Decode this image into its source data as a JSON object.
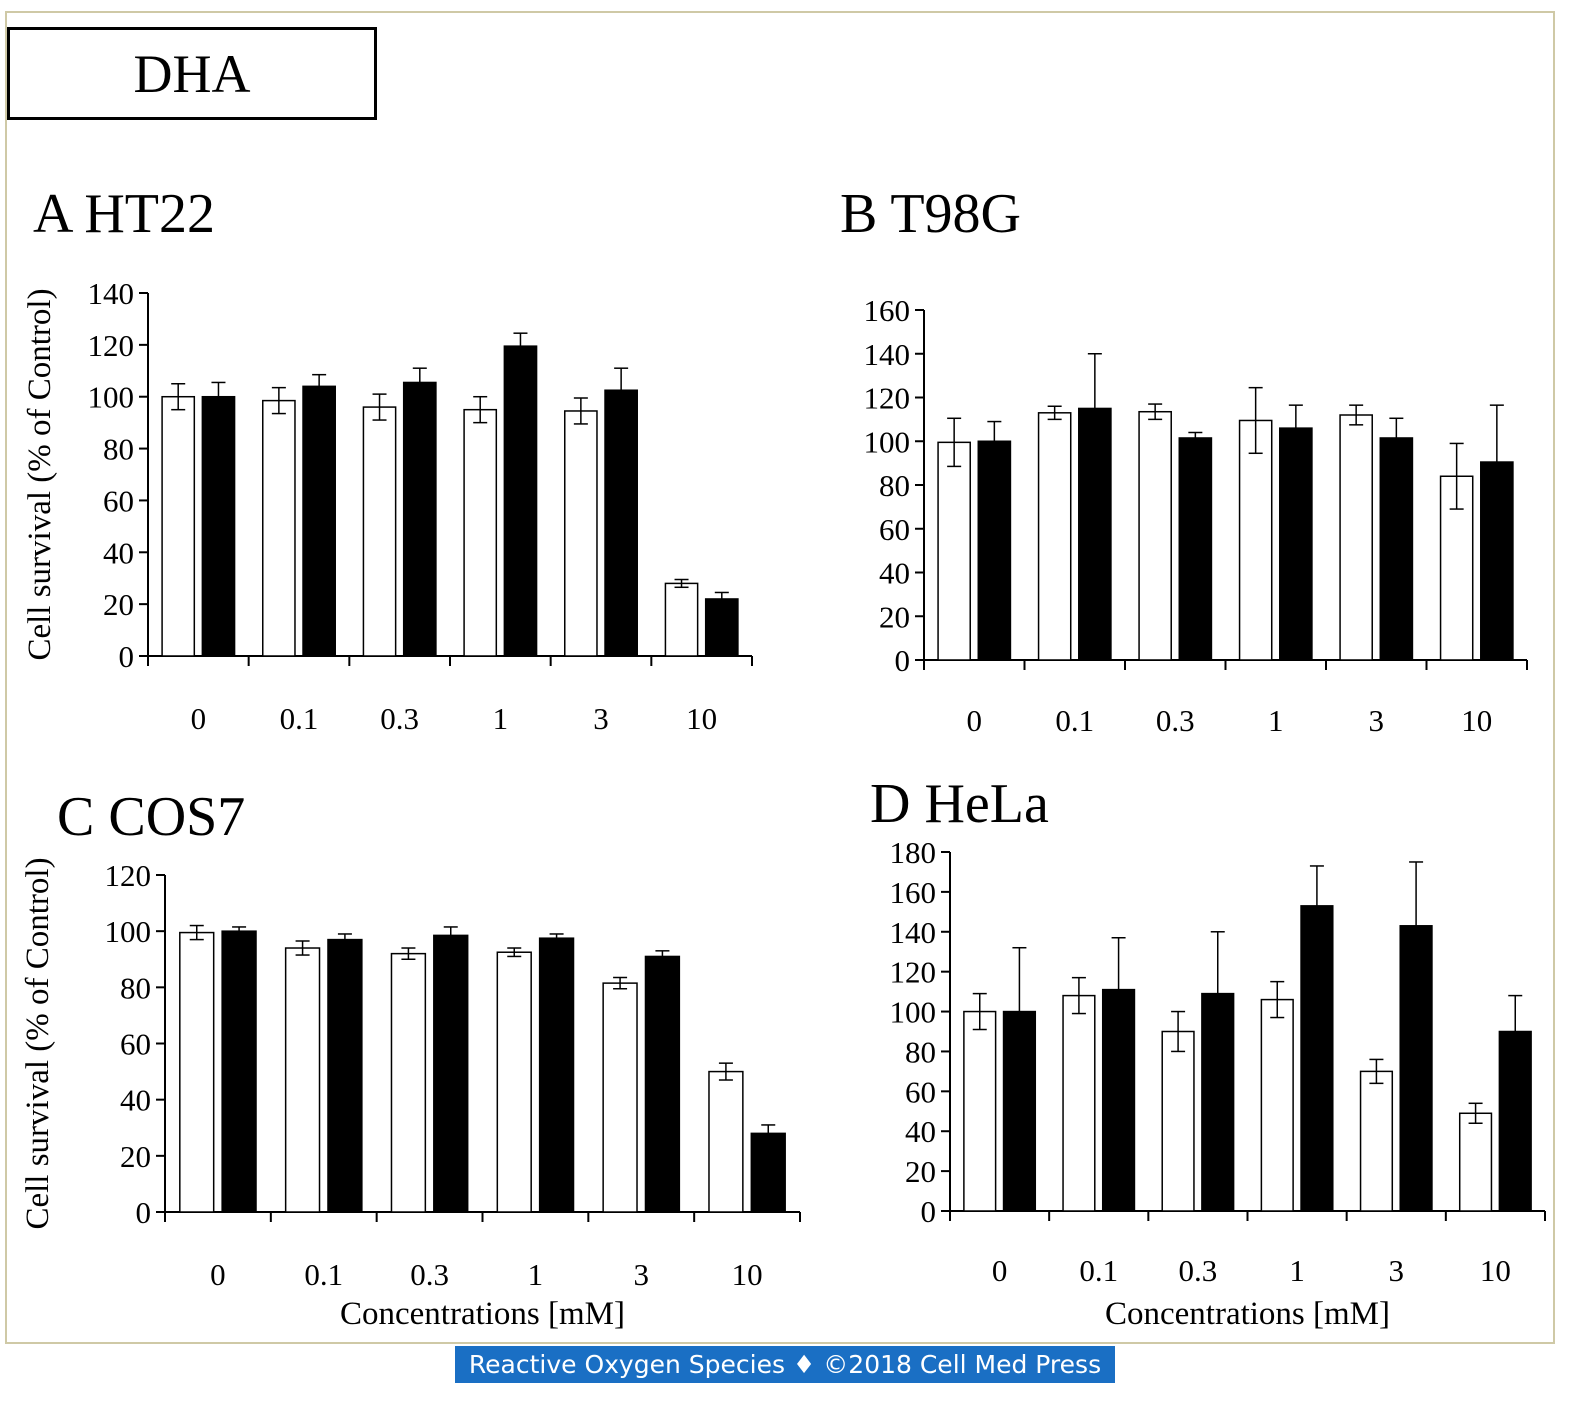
{
  "compound_label": "DHA",
  "footer_text": "Reactive Oxygen Species ♦ ©2018 Cell Med Press",
  "colors": {
    "open_bar": "#ffffff",
    "filled_bar": "#000000",
    "footer_bg": "#1a6fc4",
    "frame": "#cfc9a6"
  },
  "chart_data": [
    {
      "type": "bar",
      "panel": "A HT22",
      "title": "A HT22",
      "categories": [
        "0",
        "0.1",
        "0.3",
        "1",
        "3",
        "10"
      ],
      "ylabel": "Cell survival (% of Control)",
      "xlabel": "",
      "ylim": [
        0,
        140
      ],
      "yticks": [
        0,
        20,
        40,
        60,
        80,
        100,
        120,
        140
      ],
      "series": [
        {
          "fill": "open",
          "values": [
            100,
            98.5,
            96,
            95,
            94.5,
            28
          ],
          "errors": [
            5,
            5,
            5,
            5,
            5,
            1.5
          ]
        },
        {
          "fill": "filled",
          "values": [
            100,
            104,
            105.5,
            119.5,
            102.5,
            22
          ],
          "errors": [
            5.5,
            4.5,
            5.5,
            5,
            8.5,
            2.5
          ]
        }
      ]
    },
    {
      "type": "bar",
      "panel": "B T98G",
      "title": "B T98G",
      "categories": [
        "0",
        "0.1",
        "0.3",
        "1",
        "3",
        "10"
      ],
      "ylabel": "",
      "xlabel": "",
      "ylim": [
        0,
        160
      ],
      "yticks": [
        0,
        20,
        40,
        60,
        80,
        100,
        120,
        140,
        160
      ],
      "series": [
        {
          "fill": "open",
          "values": [
            99.5,
            113,
            113.5,
            109.5,
            112,
            84
          ],
          "errors": [
            11,
            3,
            3.5,
            15,
            4.5,
            15
          ]
        },
        {
          "fill": "filled",
          "values": [
            100,
            115,
            101.5,
            106,
            101.5,
            90.5
          ],
          "errors": [
            9,
            25,
            2.5,
            10.5,
            9,
            26
          ]
        }
      ]
    },
    {
      "type": "bar",
      "panel": "C COS7",
      "title": "C COS7",
      "categories": [
        "0",
        "0.1",
        "0.3",
        "1",
        "3",
        "10"
      ],
      "ylabel": "Cell survival (% of Control)",
      "xlabel": "Concentrations [mM]",
      "ylim": [
        0,
        120
      ],
      "yticks": [
        0,
        20,
        40,
        60,
        80,
        100,
        120
      ],
      "series": [
        {
          "fill": "open",
          "values": [
            99.5,
            94,
            92,
            92.5,
            81.5,
            50
          ],
          "errors": [
            2.5,
            2.5,
            2,
            1.5,
            2,
            3
          ]
        },
        {
          "fill": "filled",
          "values": [
            100,
            97,
            98.5,
            97.5,
            91,
            28
          ],
          "errors": [
            1.5,
            2,
            3,
            1.5,
            2,
            3
          ]
        }
      ]
    },
    {
      "type": "bar",
      "panel": "D HeLa",
      "title": "D HeLa",
      "categories": [
        "0",
        "0.1",
        "0.3",
        "1",
        "3",
        "10"
      ],
      "ylabel": "",
      "xlabel": "Concentrations [mM]",
      "ylim": [
        0,
        180
      ],
      "yticks": [
        0,
        20,
        40,
        60,
        80,
        100,
        120,
        140,
        160,
        180
      ],
      "series": [
        {
          "fill": "open",
          "values": [
            100,
            108,
            90,
            106,
            70,
            49
          ],
          "errors": [
            9,
            9,
            10,
            9,
            6,
            5
          ]
        },
        {
          "fill": "filled",
          "values": [
            100,
            111,
            109,
            153,
            143,
            90
          ],
          "errors": [
            32,
            26,
            31,
            20,
            32,
            18
          ]
        }
      ]
    }
  ]
}
